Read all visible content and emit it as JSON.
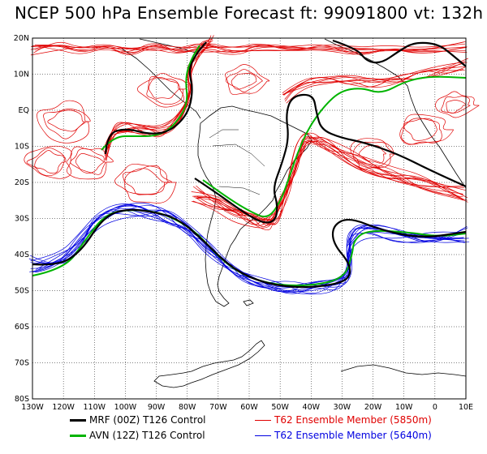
{
  "title": "NCEP 500 hPa Ensemble Forecast  ft: 99091800 vt: 132h",
  "lat_labels": [
    "20N",
    "10N",
    "EQ",
    "10S",
    "20S",
    "30S",
    "40S",
    "50S",
    "60S",
    "70S",
    "80S"
  ],
  "lon_labels": [
    "130W",
    "120W",
    "110W",
    "100W",
    "90W",
    "80W",
    "70W",
    "60W",
    "50W",
    "40W",
    "30W",
    "20W",
    "10W",
    "0",
    "10E"
  ],
  "legend": [
    {
      "label": "MRF (00Z) T126 Control",
      "color": "#000000",
      "name": "mrf"
    },
    {
      "label": "AVN (12Z) T126 Control",
      "color": "#00b400",
      "name": "avn"
    },
    {
      "label": "T62 Ensemble Member (5850m)",
      "color": "#e00000",
      "name": "ens-5850"
    },
    {
      "label": "T62 Ensemble Member (5640m)",
      "color": "#0000e0",
      "name": "ens-5640"
    }
  ],
  "colors": {
    "black": "#000000",
    "green": "#00b400",
    "red": "#e00000",
    "blue": "#0000e0"
  }
}
